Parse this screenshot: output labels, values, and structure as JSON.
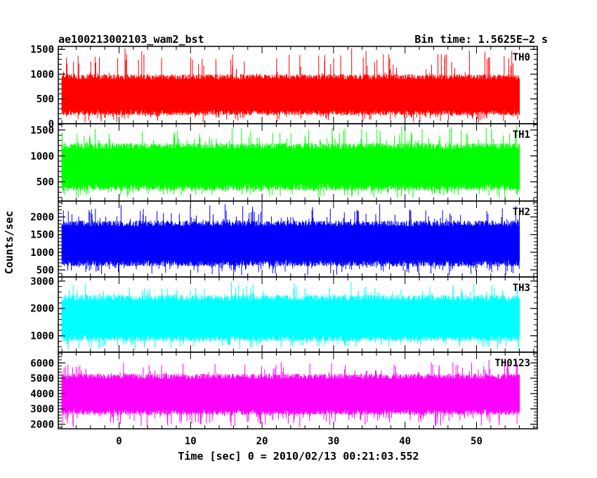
{
  "header": {
    "left_title": "ae100213002103_wam2_bst",
    "right_title": "Bin time: 1.5625E−2 s"
  },
  "chart_data": {
    "type": "line",
    "xlabel": "Time [sec] 0 = 2010/02/13 00:21:03.552",
    "ylabel": "Counts/sec",
    "xlim": [
      -8.5,
      58.5
    ],
    "x_range_data": [
      -8.0,
      56.0
    ],
    "x_ticks": [
      0,
      10,
      20,
      30,
      40,
      50
    ],
    "x_tick_labels": [
      "0",
      "10",
      "20",
      "30",
      "40",
      "50"
    ],
    "panels": [
      {
        "name": "TH0",
        "color": "#ff0000",
        "ylim": [
          0,
          1560
        ],
        "yticks": [
          0,
          500,
          1000,
          1500
        ],
        "ytick_labels": [
          "0",
          "500",
          "1000",
          "1500"
        ],
        "band_low": 170,
        "band_high": 1000,
        "spike_min": 0,
        "spike_max": 1550
      },
      {
        "name": "TH1",
        "color": "#00ff00",
        "ylim": [
          130,
          1620
        ],
        "yticks": [
          500,
          1000,
          1500
        ],
        "ytick_labels": [
          "500",
          "1000",
          "1500"
        ],
        "band_low": 330,
        "band_high": 1250,
        "spike_min": 160,
        "spike_max": 1600
      },
      {
        "name": "TH2",
        "color": "#0000ff",
        "ylim": [
          300,
          2450
        ],
        "yticks": [
          500,
          1000,
          1500,
          2000
        ],
        "ytick_labels": [
          "500",
          "1000",
          "1500",
          "2000"
        ],
        "band_low": 600,
        "band_high": 1900,
        "spike_min": 320,
        "spike_max": 2400
      },
      {
        "name": "TH3",
        "color": "#00ffff",
        "ylim": [
          400,
          3150
        ],
        "yticks": [
          1000,
          2000,
          3000
        ],
        "ytick_labels": [
          "1000",
          "2000",
          "3000"
        ],
        "band_low": 800,
        "band_high": 2500,
        "spike_min": 450,
        "spike_max": 3050
      },
      {
        "name": "TH0123",
        "color": "#ff00ff",
        "ylim": [
          1700,
          6700
        ],
        "yticks": [
          2000,
          3000,
          4000,
          5000,
          6000
        ],
        "ytick_labels": [
          "2000",
          "3000",
          "4000",
          "5000",
          "6000"
        ],
        "band_low": 2600,
        "band_high": 5300,
        "spike_min": 1750,
        "spike_max": 6400
      }
    ]
  }
}
